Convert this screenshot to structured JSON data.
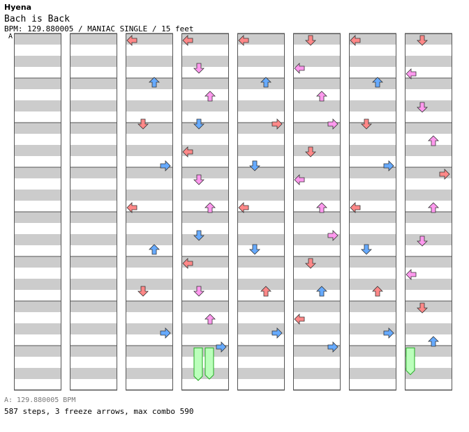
{
  "header": {
    "artist": "Hyena",
    "title": "Bach is Back",
    "meta": "BPM: 129.880005 / MANIAC SINGLE / 15 feet",
    "bpm_marker": "A"
  },
  "footer": {
    "bpm_legend": "A: 129.880005 BPM",
    "stats": "587 steps, 3 freeze arrows, max combo 590"
  },
  "colors": {
    "stripe": "#cccccc",
    "border": "#555555",
    "quarter": "#ff8888",
    "eighth": "#66aaff",
    "sixteenth": "#ff99ee",
    "freeze": "#bbffbb",
    "freeze_border": "#22aa22"
  },
  "chart_data": {
    "type": "step-chart",
    "columns": 8,
    "measures_per_column": 8,
    "lanes": [
      "left",
      "down",
      "up",
      "right"
    ],
    "notes": [
      [
        2,
        0,
        "q"
      ],
      [
        2,
        2,
        "e"
      ],
      [
        2,
        1,
        "q"
      ],
      [
        2,
        3,
        "e"
      ],
      [
        2,
        0,
        "q"
      ],
      [
        2,
        2,
        "e"
      ],
      [
        2,
        1,
        "q"
      ],
      [
        2,
        3,
        "e"
      ],
      [
        3,
        0,
        "q"
      ],
      [
        3,
        1,
        "s"
      ],
      [
        3,
        2,
        "s"
      ],
      [
        3,
        1,
        "e"
      ],
      [
        3,
        0,
        "q"
      ],
      [
        3,
        1,
        "s"
      ],
      [
        3,
        2,
        "s"
      ],
      [
        3,
        1,
        "e"
      ],
      [
        3,
        0,
        "q"
      ],
      [
        3,
        1,
        "s"
      ],
      [
        3,
        2,
        "s"
      ],
      [
        3,
        3,
        "e"
      ],
      [
        4,
        0,
        "q"
      ],
      [
        4,
        2,
        "e"
      ],
      [
        4,
        3,
        "q"
      ],
      [
        4,
        1,
        "e"
      ],
      [
        4,
        0,
        "q"
      ],
      [
        4,
        1,
        "e"
      ],
      [
        4,
        2,
        "q"
      ],
      [
        4,
        3,
        "e"
      ],
      [
        5,
        1,
        "q"
      ],
      [
        5,
        0,
        "s"
      ],
      [
        5,
        2,
        "s"
      ],
      [
        5,
        3,
        "s"
      ],
      [
        5,
        1,
        "q"
      ],
      [
        5,
        0,
        "s"
      ],
      [
        5,
        2,
        "s"
      ],
      [
        5,
        3,
        "s"
      ],
      [
        5,
        1,
        "q"
      ],
      [
        5,
        2,
        "e"
      ],
      [
        5,
        0,
        "q"
      ],
      [
        5,
        3,
        "e"
      ],
      [
        6,
        0,
        "q"
      ],
      [
        6,
        2,
        "e"
      ],
      [
        6,
        1,
        "q"
      ],
      [
        6,
        3,
        "e"
      ],
      [
        6,
        0,
        "q"
      ],
      [
        6,
        1,
        "e"
      ],
      [
        6,
        2,
        "q"
      ],
      [
        6,
        3,
        "e"
      ],
      [
        7,
        1,
        "q"
      ],
      [
        7,
        0,
        "s"
      ],
      [
        7,
        1,
        "s"
      ],
      [
        7,
        2,
        "s"
      ],
      [
        7,
        3,
        "q"
      ],
      [
        7,
        2,
        "s"
      ],
      [
        7,
        1,
        "s"
      ],
      [
        7,
        0,
        "s"
      ],
      [
        7,
        1,
        "q"
      ],
      [
        7,
        2,
        "e"
      ]
    ],
    "freezes": [
      {
        "column": 3,
        "lane": 1,
        "from": 7.05,
        "to": 7.75
      },
      {
        "column": 3,
        "lane": 2,
        "from": 7.05,
        "to": 7.72
      },
      {
        "column": 7,
        "lane": 0,
        "from": 7.05,
        "to": 7.62
      }
    ]
  }
}
